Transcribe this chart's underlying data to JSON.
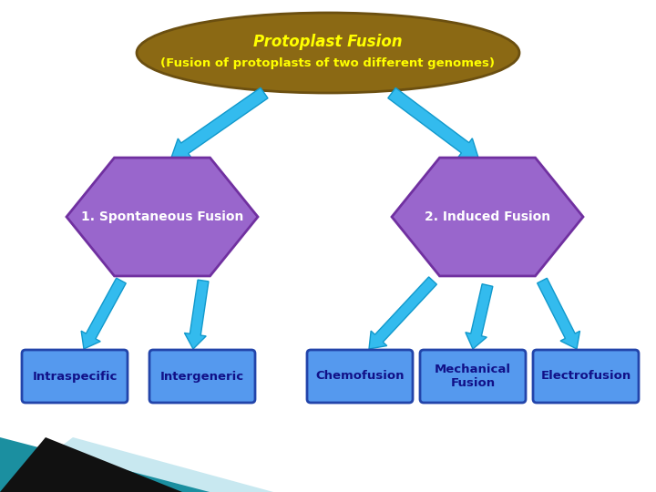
{
  "title_line1": "Protoplast Fusion",
  "title_line2": "(Fusion of protoplasts of two different genomes)",
  "title_color1": "yellow",
  "title_color2": "yellow",
  "ellipse_color": "#8B6914",
  "ellipse_edge": "#6B4F10",
  "hex_color": "#9966CC",
  "hex_edge": "#7030A0",
  "box_color": "#5599EE",
  "box_edge": "#2244AA",
  "box_text_color": "#111188",
  "arrow_color": "#33BBEE",
  "arrow_edge": "#1199CC",
  "left_hex_label": "1. Spontaneous Fusion",
  "right_hex_label": "2. Induced Fusion",
  "left_boxes": [
    "Intraspecific",
    "Intergeneric"
  ],
  "right_boxes": [
    "Chemofusion",
    "Mechanical\nFusion",
    "Electrofusion"
  ],
  "background_color": "#ffffff",
  "teal_color": "#1B8FA0",
  "lightblue_color": "#C8E8F0"
}
